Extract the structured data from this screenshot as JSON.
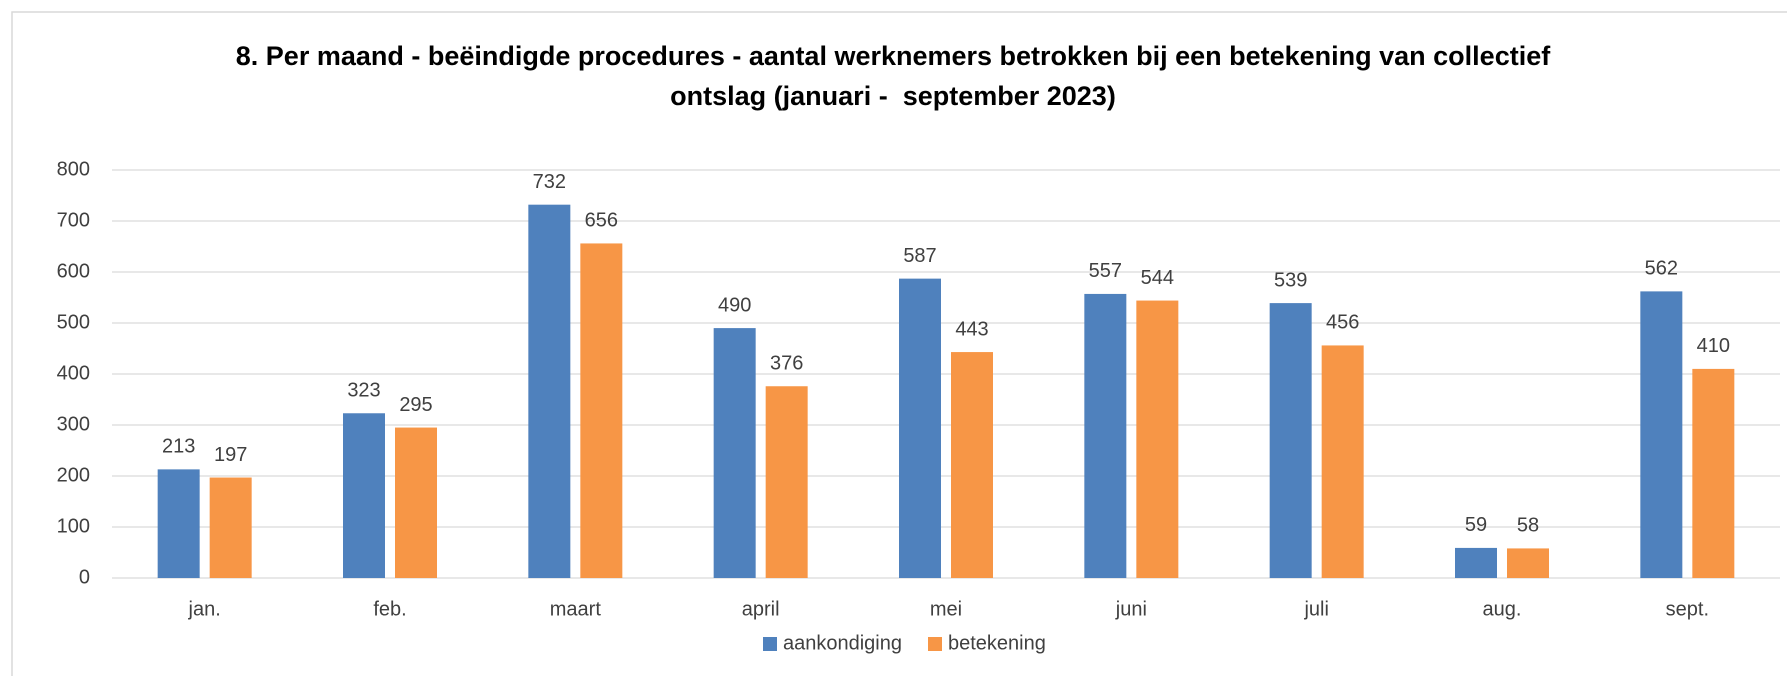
{
  "chart_data": {
    "type": "bar",
    "title": "8. Per maand - beëindigde procedures - aantal werknemers betrokken bij een betekening van collectief ontslag (januari -  september 2023)",
    "categories": [
      "jan.",
      "feb.",
      "maart",
      "april",
      "mei",
      "juni",
      "juli",
      "aug.",
      "sept."
    ],
    "series": [
      {
        "name": "aankondiging",
        "color": "#4f81bd",
        "values": [
          213,
          323,
          732,
          490,
          587,
          557,
          539,
          59,
          562
        ]
      },
      {
        "name": "betekening",
        "color": "#f79646",
        "values": [
          197,
          295,
          656,
          376,
          443,
          544,
          456,
          58,
          410
        ]
      }
    ],
    "ylim": [
      0,
      800
    ],
    "yticks": [
      0,
      100,
      200,
      300,
      400,
      500,
      600,
      700,
      800
    ],
    "grid": true,
    "legend": "bottom"
  }
}
